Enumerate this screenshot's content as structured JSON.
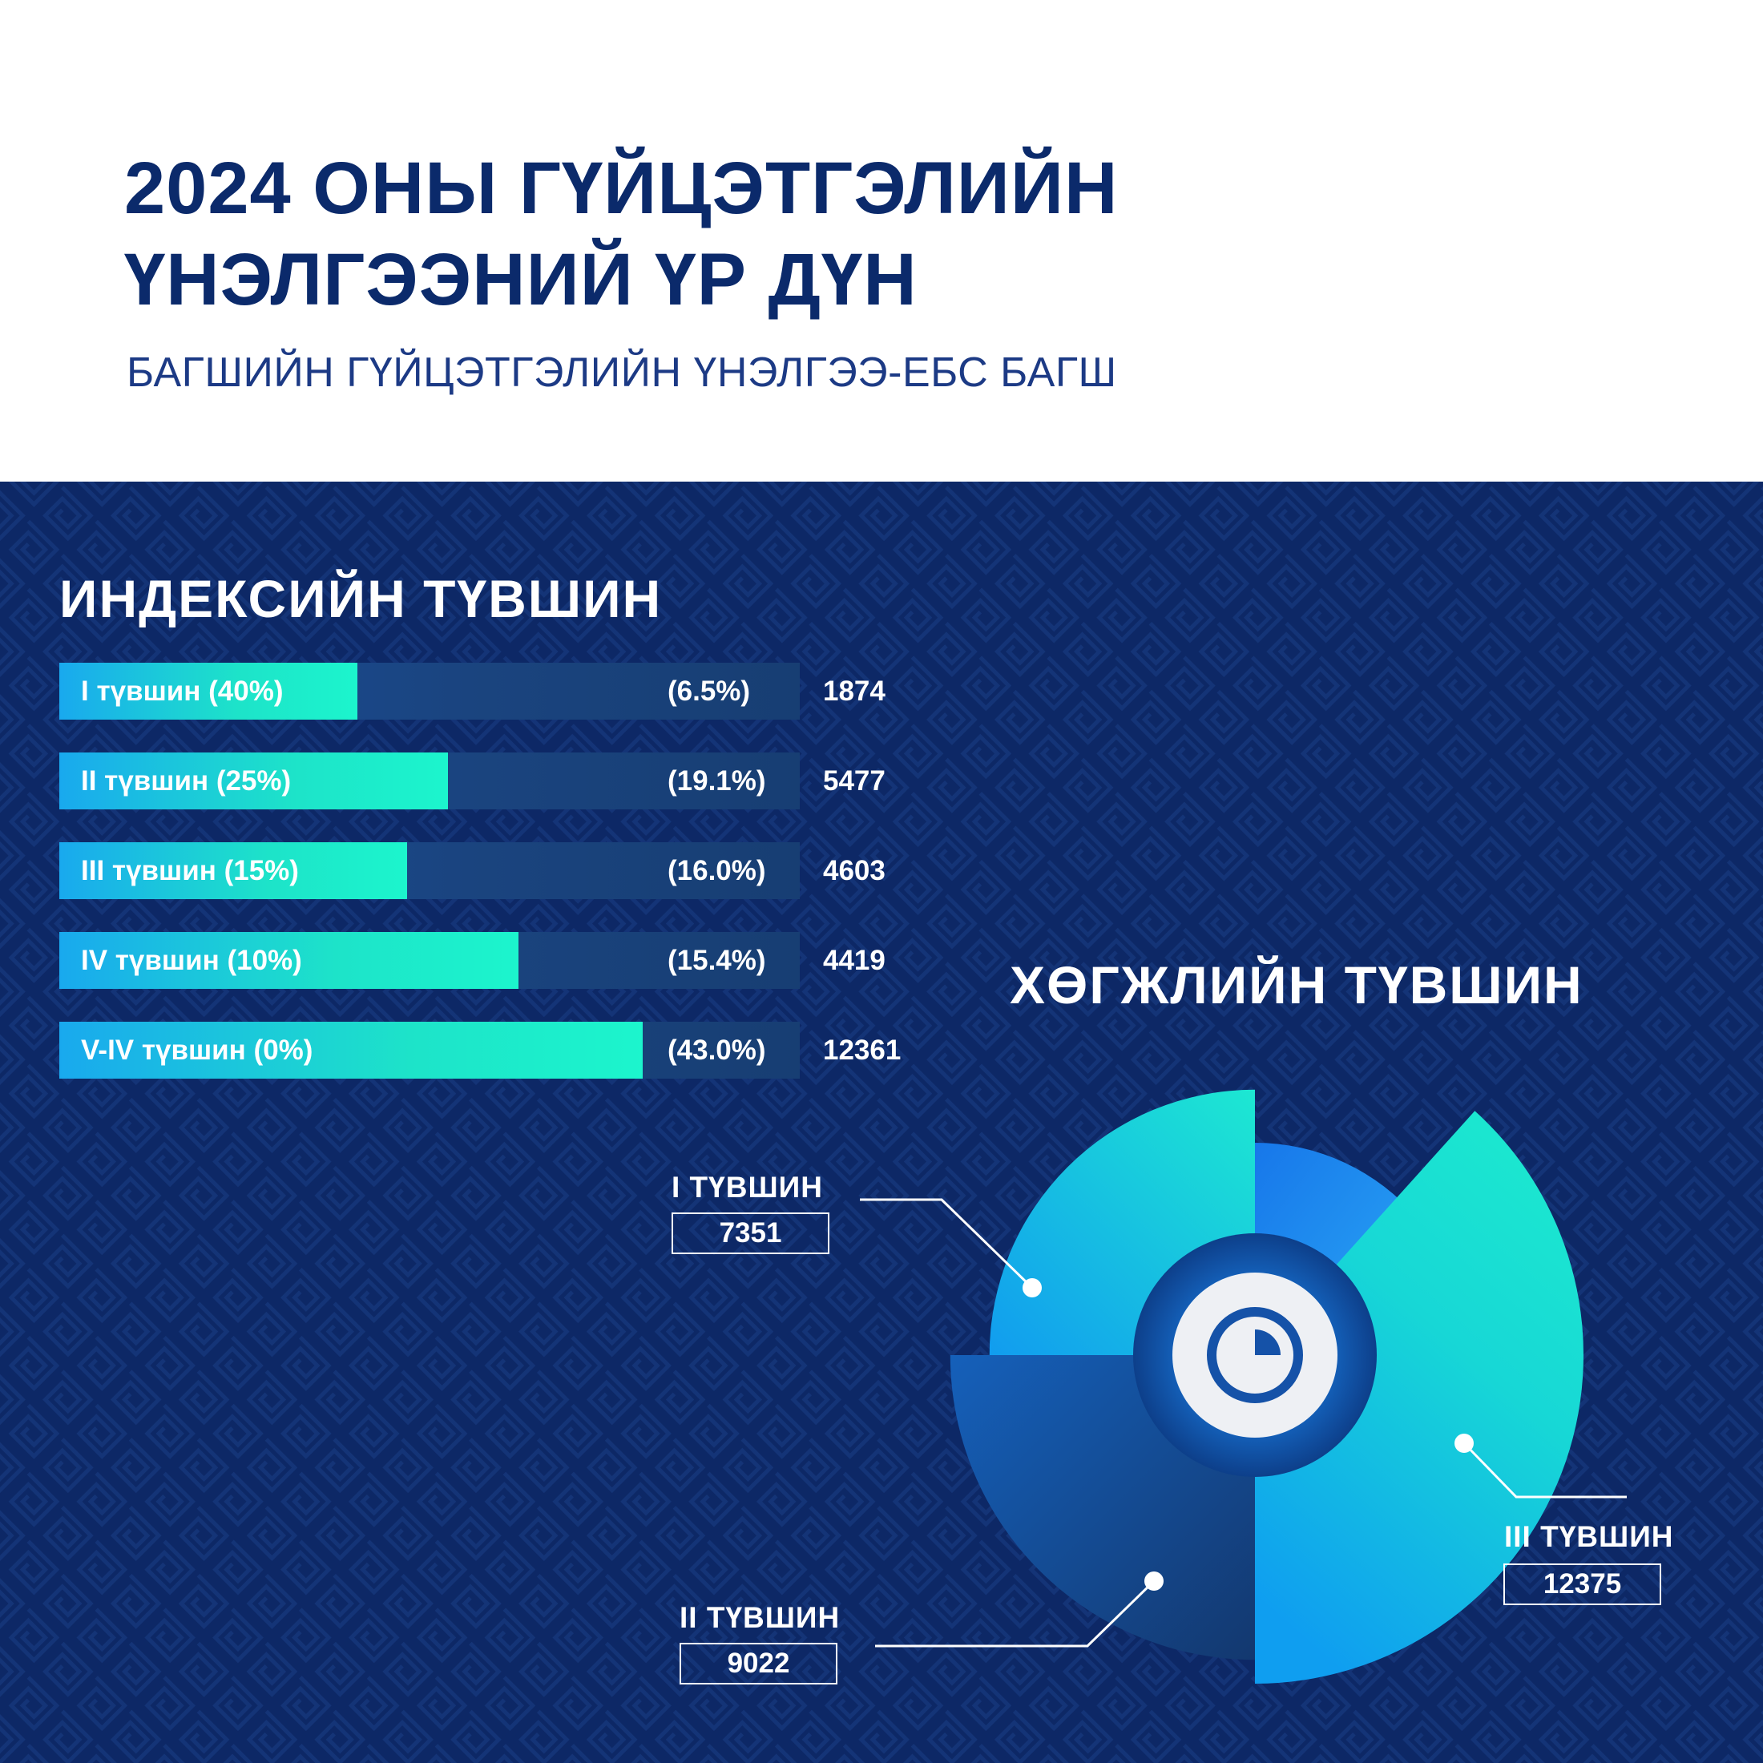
{
  "header": {
    "title_line1": "2024 ОНЫ ГҮЙЦЭТГЭЛИЙН",
    "title_line2": "ҮНЭЛГЭЭНИЙ ҮР ДҮН",
    "subtitle": "БАГШИЙН ГҮЙЦЭТГЭЛИЙН ҮНЭЛГЭЭ-ЕБС БАГШ"
  },
  "colors": {
    "navy": "#0d2866",
    "title": "#0b2a6b",
    "accent_teal": "#1cf5cd",
    "accent_blue": "#19a9ee"
  },
  "chart_data": [
    {
      "type": "bar",
      "orientation": "horizontal",
      "title": "ИНДЕКСИЙН ТҮВШИН",
      "categories": [
        "I түвшин (40%)",
        "II түвшин (25%)",
        "III түвшин (15%)",
        "IV түвшин (10%)",
        "V-IV түвшин (0%)"
      ],
      "percent_labels": [
        "(6.5%)",
        "(19.1%)",
        "(16.0%)",
        "(15.4%)",
        "(43.0%)"
      ],
      "percent_values": [
        6.5,
        19.1,
        16.0,
        15.4,
        43.0
      ],
      "values": [
        1874,
        5477,
        4603,
        4419,
        12361
      ]
    },
    {
      "type": "pie",
      "style": "radial-segments",
      "title": "ХӨГЖЛИЙН ТҮВШИН",
      "categories": [
        "I ТҮВШИН",
        "II ТҮВШИН",
        "III ТҮВШИН"
      ],
      "values": [
        7351,
        9022,
        12375
      ],
      "icon": "pie-chart-icon"
    }
  ]
}
